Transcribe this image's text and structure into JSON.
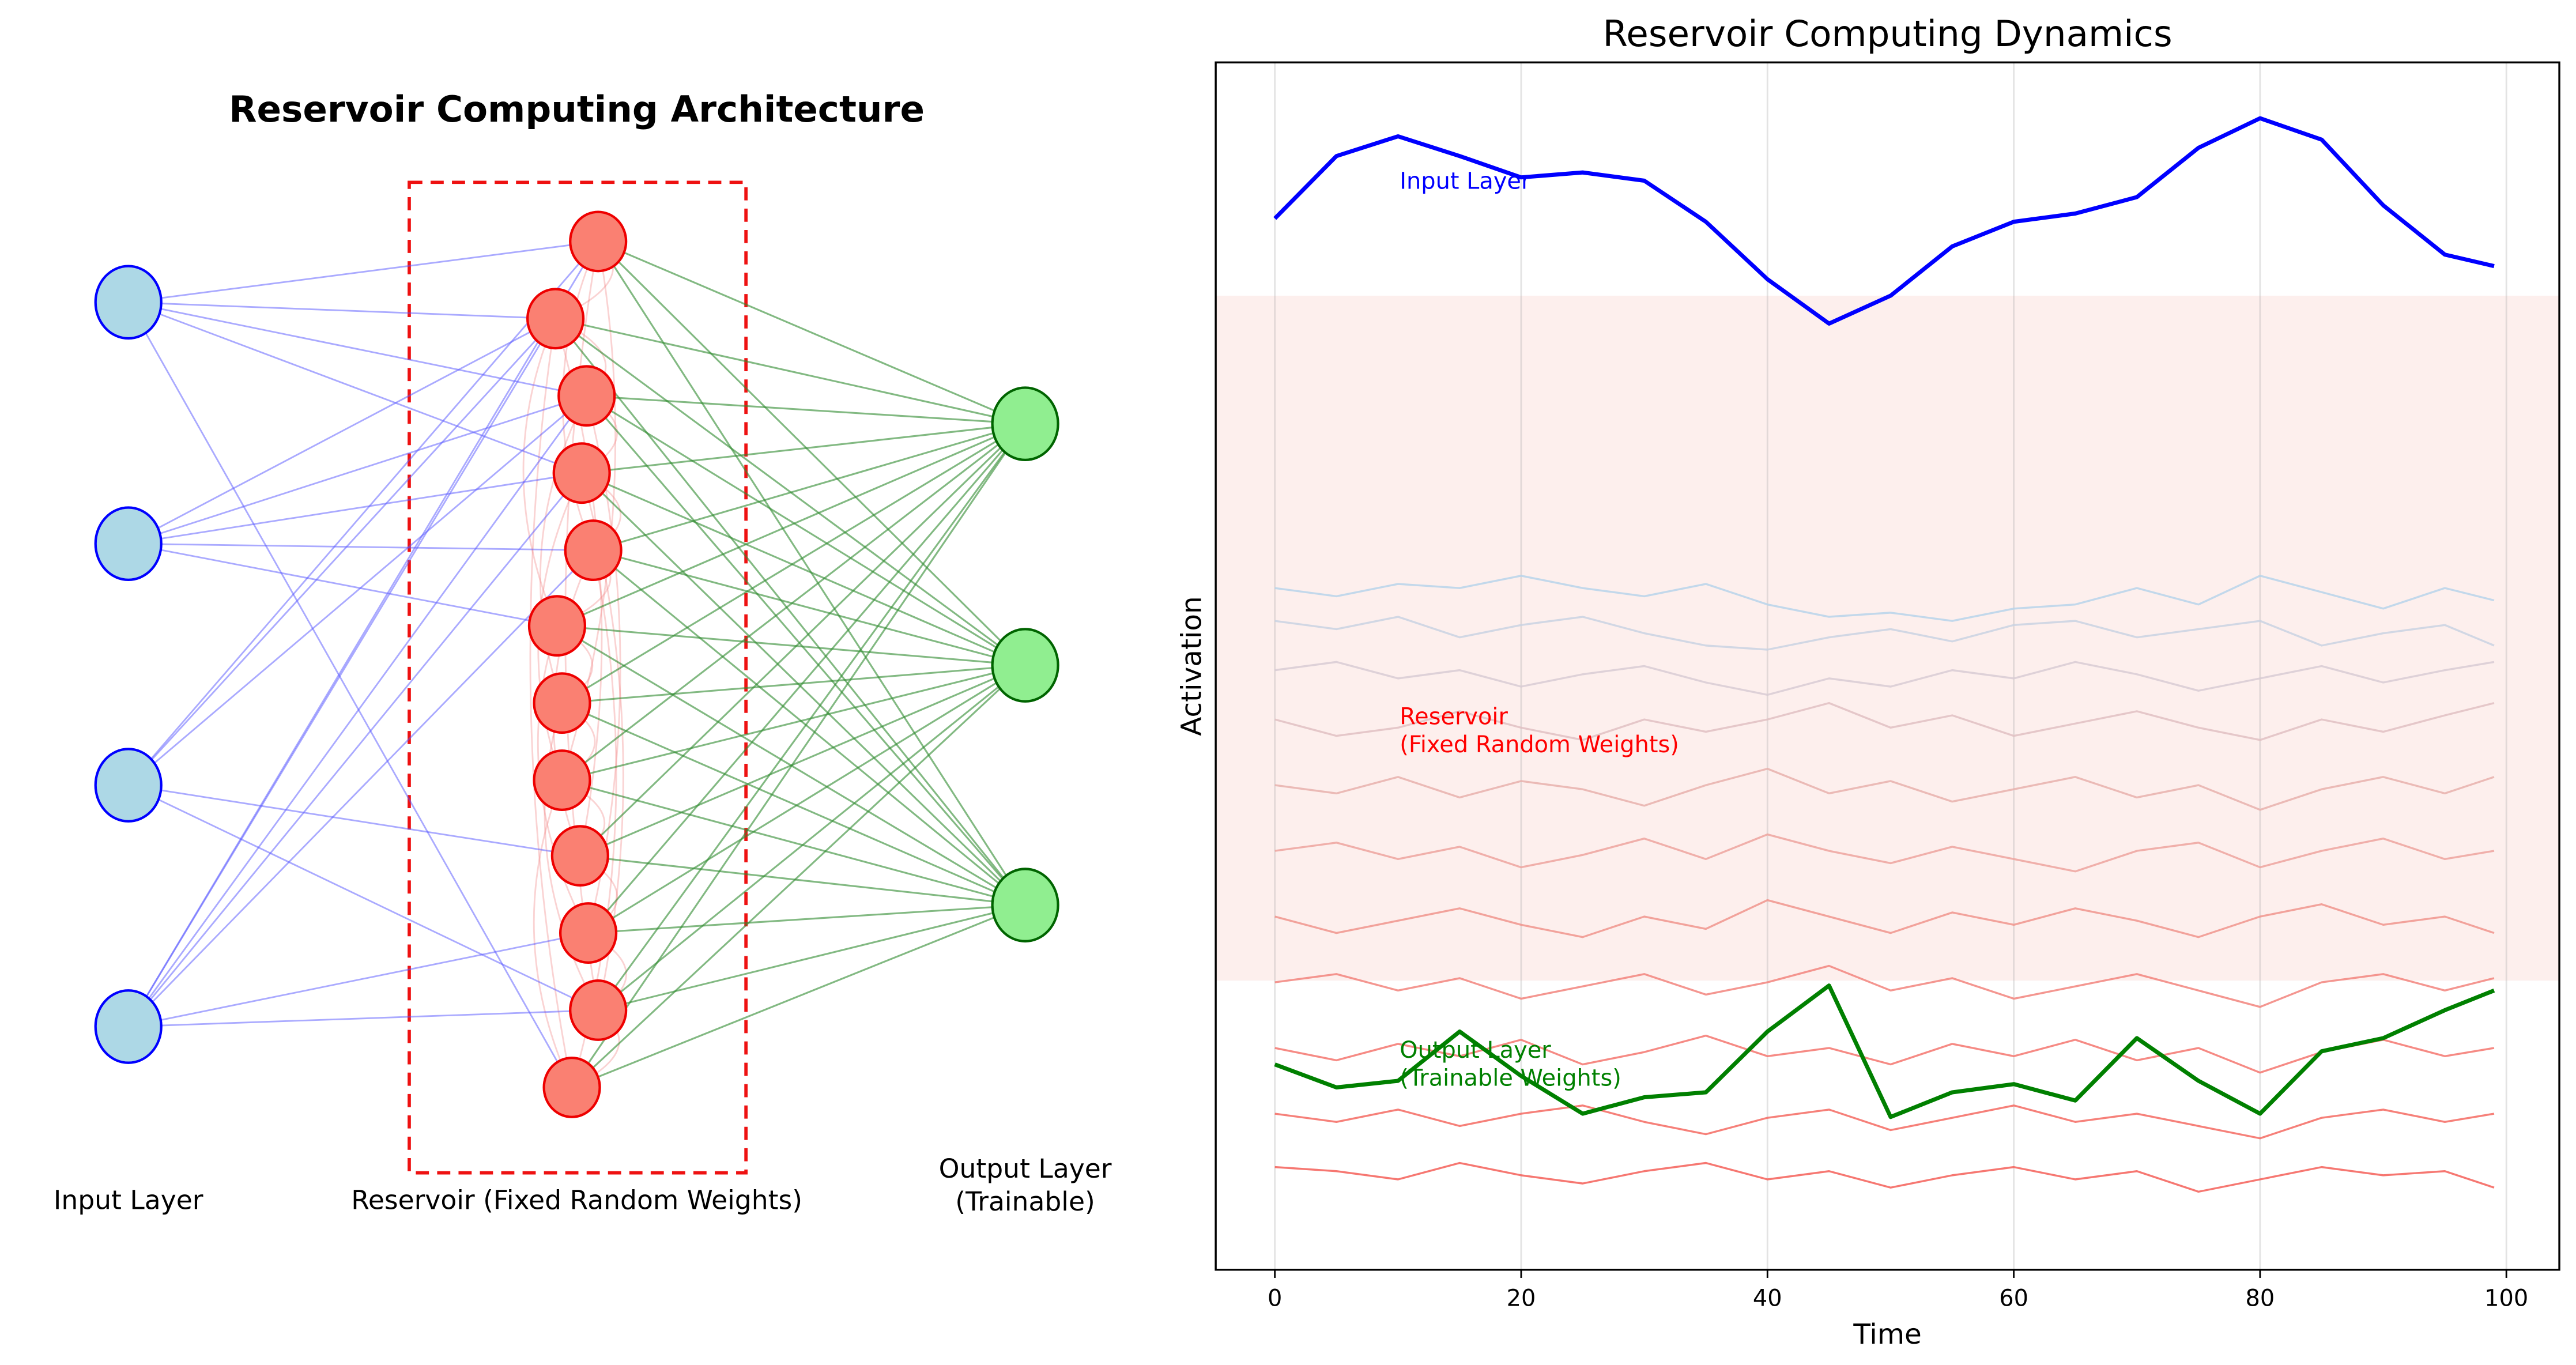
{
  "diagram": {
    "title": "Reservoir Computing Architecture",
    "input_label": "Input Layer",
    "reservoir_label": "Reservoir (Fixed Random Weights)",
    "output_label": [
      "Output Layer",
      "(Trainable)"
    ]
  },
  "chart_data": {
    "type": "line",
    "title": "Reservoir Computing Dynamics",
    "x_label": "Time",
    "y_label": "Activation",
    "xlim": [
      -4.8,
      104.3
    ],
    "xticks": [
      0,
      20,
      40,
      60,
      80,
      100
    ],
    "ylim": [
      0,
      14.7
    ],
    "grid": true,
    "reservoir_band": [
      3.52,
      11.86
    ],
    "band_color": "#fbe4e1",
    "x": [
      0,
      5,
      10,
      15,
      20,
      25,
      30,
      35,
      40,
      45,
      50,
      55,
      60,
      65,
      70,
      75,
      80,
      85,
      90,
      95,
      99
    ],
    "annotations": [
      {
        "lines": [
          "Input Layer"
        ],
        "color": "#0000ff"
      },
      {
        "lines": [
          "Reservoir",
          "(Fixed Random Weights)"
        ],
        "color": "#ff0000"
      },
      {
        "lines": [
          "Output Layer",
          "(Trainable Weights)"
        ],
        "color": "#008000"
      }
    ],
    "series": [
      {
        "color": "#b7d4ea",
        "values": [
          8.3,
          8.2,
          8.35,
          8.3,
          8.45,
          8.3,
          8.2,
          8.35,
          8.1,
          7.95,
          8.0,
          7.9,
          8.05,
          8.1,
          8.3,
          8.1,
          8.45,
          8.25,
          8.05,
          8.3,
          8.15
        ]
      },
      {
        "color": "#c9d2e2",
        "values": [
          7.9,
          7.8,
          7.95,
          7.7,
          7.85,
          7.95,
          7.75,
          7.6,
          7.55,
          7.7,
          7.8,
          7.65,
          7.85,
          7.9,
          7.7,
          7.8,
          7.9,
          7.6,
          7.75,
          7.85,
          7.6
        ]
      },
      {
        "color": "#d8cbd3",
        "values": [
          7.3,
          7.4,
          7.2,
          7.3,
          7.1,
          7.25,
          7.35,
          7.15,
          7.0,
          7.2,
          7.1,
          7.3,
          7.2,
          7.4,
          7.25,
          7.05,
          7.2,
          7.35,
          7.15,
          7.3,
          7.4
        ]
      },
      {
        "color": "#e0c0c2",
        "values": [
          6.7,
          6.5,
          6.6,
          6.8,
          6.6,
          6.45,
          6.7,
          6.55,
          6.7,
          6.9,
          6.6,
          6.75,
          6.5,
          6.65,
          6.8,
          6.6,
          6.45,
          6.7,
          6.55,
          6.75,
          6.9
        ]
      },
      {
        "color": "#e8b0ac",
        "values": [
          5.9,
          5.8,
          6.0,
          5.75,
          5.95,
          5.85,
          5.65,
          5.9,
          6.1,
          5.8,
          5.95,
          5.7,
          5.85,
          6.0,
          5.75,
          5.9,
          5.6,
          5.85,
          6.0,
          5.8,
          6.0
        ]
      },
      {
        "color": "#eda39d",
        "values": [
          5.1,
          5.2,
          5.0,
          5.15,
          4.9,
          5.05,
          5.25,
          5.0,
          5.3,
          5.1,
          4.95,
          5.15,
          5.0,
          4.85,
          5.1,
          5.2,
          4.9,
          5.1,
          5.25,
          5.0,
          5.1
        ]
      },
      {
        "color": "#f0948c",
        "values": [
          4.3,
          4.1,
          4.25,
          4.4,
          4.2,
          4.05,
          4.3,
          4.15,
          4.5,
          4.3,
          4.1,
          4.35,
          4.2,
          4.4,
          4.25,
          4.05,
          4.3,
          4.45,
          4.2,
          4.3,
          4.1
        ]
      },
      {
        "color": "#f2847c",
        "values": [
          3.5,
          3.6,
          3.4,
          3.55,
          3.3,
          3.45,
          3.6,
          3.35,
          3.5,
          3.7,
          3.4,
          3.55,
          3.3,
          3.45,
          3.6,
          3.4,
          3.2,
          3.5,
          3.6,
          3.4,
          3.55
        ]
      },
      {
        "color": "#f4766e",
        "values": [
          2.7,
          2.55,
          2.75,
          2.6,
          2.8,
          2.5,
          2.65,
          2.85,
          2.6,
          2.7,
          2.5,
          2.75,
          2.6,
          2.8,
          2.55,
          2.7,
          2.4,
          2.65,
          2.8,
          2.6,
          2.7
        ]
      },
      {
        "color": "#f56a62",
        "values": [
          1.9,
          1.8,
          1.95,
          1.75,
          1.9,
          2.0,
          1.8,
          1.65,
          1.85,
          1.95,
          1.7,
          1.85,
          2.0,
          1.8,
          1.9,
          1.75,
          1.6,
          1.85,
          1.95,
          1.8,
          1.9
        ]
      },
      {
        "color": "#f55f58",
        "values": [
          1.25,
          1.2,
          1.1,
          1.3,
          1.15,
          1.05,
          1.2,
          1.3,
          1.1,
          1.2,
          1.0,
          1.15,
          1.25,
          1.1,
          1.2,
          0.95,
          1.1,
          1.25,
          1.15,
          1.2,
          1.0
        ]
      },
      {
        "color": "#0000ff",
        "width": 2.5,
        "values": [
          12.8,
          13.56,
          13.8,
          13.56,
          13.3,
          13.36,
          13.26,
          12.76,
          12.06,
          11.52,
          11.86,
          12.46,
          12.76,
          12.86,
          13.06,
          13.66,
          14.02,
          13.76,
          12.96,
          12.36,
          12.22
        ]
      },
      {
        "color": "#008000",
        "width": 2.5,
        "values": [
          2.5,
          2.22,
          2.3,
          2.9,
          2.36,
          1.9,
          2.1,
          2.16,
          2.9,
          3.46,
          1.86,
          2.16,
          2.26,
          2.06,
          2.82,
          2.3,
          1.9,
          2.66,
          2.82,
          3.16,
          3.4
        ]
      }
    ]
  }
}
